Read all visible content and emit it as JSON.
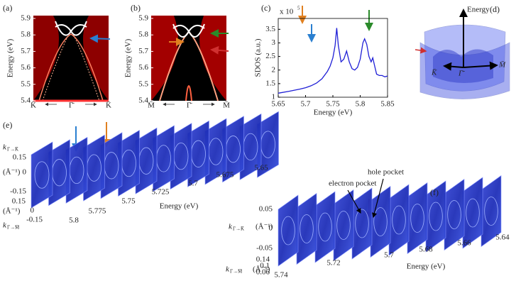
{
  "panels": {
    "a": {
      "label": "(a)",
      "y_label": "Energy (eV)",
      "y_ticks": [
        5.4,
        5.5,
        5.6,
        5.7,
        5.8,
        5.9
      ],
      "x_labels": [
        "K̄",
        "Γ̄",
        "K̄"
      ]
    },
    "b": {
      "label": "(b)",
      "y_label": "Energy (eV)",
      "y_ticks": [
        5.4,
        5.5,
        5.6,
        5.7,
        5.8,
        5.9
      ],
      "x_labels": [
        "M̄",
        "Γ̄",
        "M̄"
      ]
    },
    "d": {
      "label": "(d)",
      "axis_label": "Energy",
      "points": [
        "K̄",
        "Γ̄",
        "M̄"
      ]
    },
    "e": {
      "label": "(e)",
      "k1": "k",
      "k1_sub": "Γ→K̄",
      "k1_ticks": [
        0.15,
        0,
        -0.15
      ],
      "unit": "(Å⁻¹)",
      "k2": "k",
      "k2_sub": "Γ→M̄",
      "k2_ticks": [
        0.15,
        0,
        -0.15
      ],
      "energy_ticks": [
        5.8,
        5.775,
        5.75,
        5.725,
        5.7,
        5.675,
        5.65
      ],
      "energy_label": "Energy (eV)"
    },
    "f": {
      "label": "(f)",
      "k1": "k",
      "k1_sub": "Γ→K̄",
      "k1_ticks": [
        0.05,
        0,
        -0.05
      ],
      "unit": "(Å⁻¹)",
      "k2": "k",
      "k2_sub": "Γ→M̄",
      "k2_ticks": [
        0.14,
        0.1,
        0.06
      ],
      "energy_ticks": [
        5.74,
        5.72,
        5.7,
        5.68,
        5.66,
        5.64
      ],
      "energy_label": "Energy (eV)",
      "annotations": [
        "electron pocket",
        "hole pocket"
      ]
    }
  },
  "chart_data": {
    "type": "line",
    "panel_label": "(c)",
    "x_label": "Energy (eV)",
    "y_label": "SDOS (a.u.)",
    "y_multiplier": "x 10",
    "y_multiplier_exp": "5",
    "color": "#1f1fd6",
    "x": [
      5.65,
      5.67,
      5.69,
      5.7,
      5.71,
      5.72,
      5.73,
      5.74,
      5.745,
      5.75,
      5.754,
      5.757,
      5.76,
      5.765,
      5.77,
      5.775,
      5.78,
      5.785,
      5.79,
      5.795,
      5.8,
      5.805,
      5.808,
      5.812,
      5.816,
      5.82,
      5.823,
      5.827,
      5.83,
      5.835,
      5.84,
      5.845,
      5.85
    ],
    "values": [
      1.15,
      1.22,
      1.3,
      1.35,
      1.42,
      1.52,
      1.68,
      1.95,
      2.15,
      2.45,
      2.9,
      3.55,
      2.9,
      2.3,
      2.4,
      2.7,
      2.3,
      2.05,
      2.0,
      2.1,
      2.4,
      3.0,
      3.15,
      2.95,
      2.5,
      2.3,
      2.45,
      2.1,
      1.85,
      1.8,
      1.8,
      1.75,
      1.78
    ],
    "xlim": [
      5.65,
      5.85
    ],
    "ylim": [
      1,
      3.9
    ],
    "xticks": [
      5.65,
      5.7,
      5.75,
      5.8,
      5.85
    ],
    "yticks": [
      1,
      1.5,
      2,
      2.5,
      3,
      3.5
    ]
  }
}
